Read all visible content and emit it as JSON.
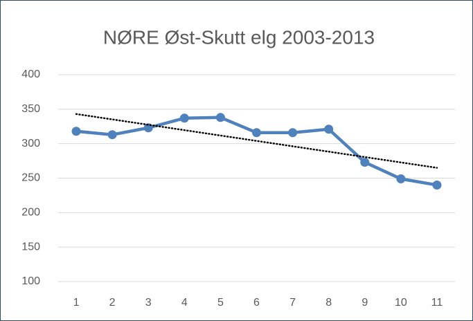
{
  "chart_data": {
    "type": "line",
    "title": "NØRE Øst-Skutt elg 2003-2013",
    "categories": [
      1,
      2,
      3,
      4,
      5,
      6,
      7,
      8,
      9,
      10,
      11
    ],
    "series": [
      {
        "color": "#4f81bd",
        "values": [
          318,
          313,
          323,
          337,
          338,
          316,
          316,
          321,
          273,
          249,
          240
        ]
      }
    ],
    "trendline": {
      "start": 343,
      "end": 265,
      "color": "#000000"
    },
    "ylim": [
      100,
      400
    ],
    "yticks": [
      100,
      150,
      200,
      250,
      300,
      350,
      400
    ],
    "grid": true
  }
}
